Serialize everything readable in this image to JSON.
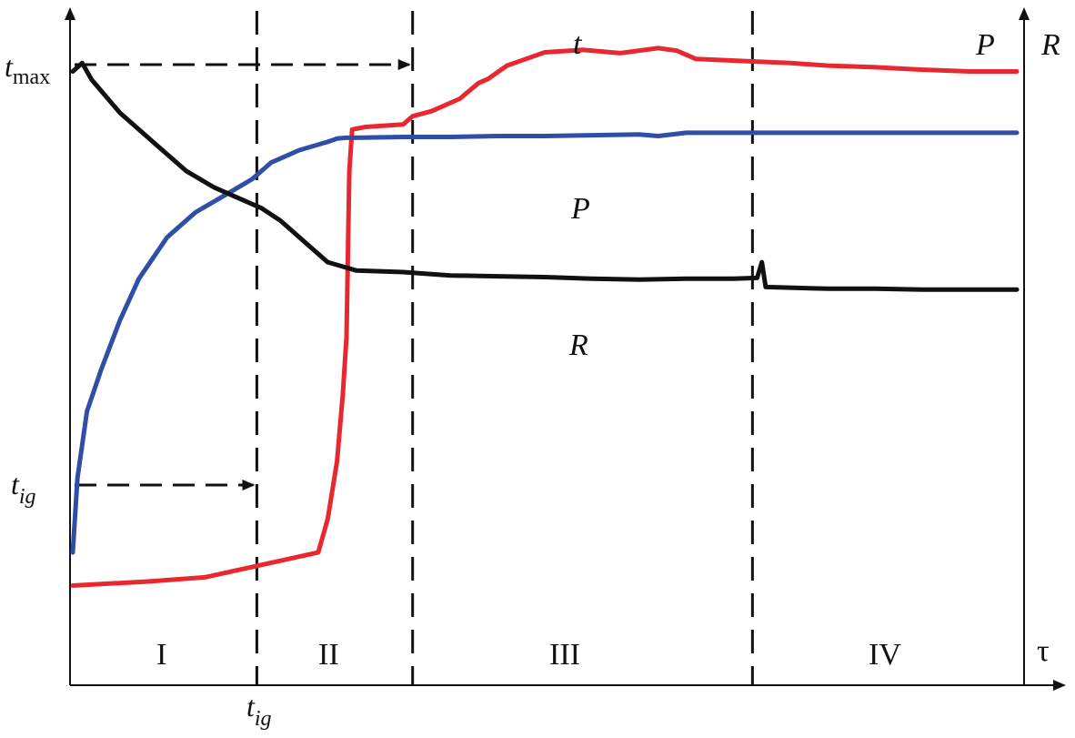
{
  "chart_data": {
    "type": "line",
    "title": "",
    "xlabel": "τ",
    "ylabels": {
      "P": "P",
      "R": "R"
    },
    "y_marks": {
      "tmax_base": "t",
      "tmax_sub": "max",
      "tig_base": "t",
      "tig_sub": "ig"
    },
    "x_marks": {
      "tig_base": "t",
      "tig_sub": "ig"
    },
    "stage_labels": [
      "I",
      "II",
      "III",
      "IV"
    ],
    "colors": {
      "t": "#e8282e",
      "P": "#2f4fa6",
      "R": "#111111"
    },
    "series": [
      {
        "name": "t",
        "points": [
          [
            0,
            34
          ],
          [
            8,
            34.5
          ],
          [
            14,
            35
          ],
          [
            18,
            36
          ],
          [
            22,
            37
          ],
          [
            26,
            38
          ],
          [
            27,
            42
          ],
          [
            28,
            49
          ],
          [
            28.6,
            57
          ],
          [
            29,
            64
          ],
          [
            29.3,
            84
          ],
          [
            29.6,
            89
          ],
          [
            31,
            89.3
          ],
          [
            35,
            89.6
          ],
          [
            36,
            90.6
          ],
          [
            38,
            91.2
          ],
          [
            41,
            92.7
          ],
          [
            43,
            94.6
          ],
          [
            44,
            95.1
          ],
          [
            46,
            96.7
          ],
          [
            48,
            97.5
          ],
          [
            50,
            98.3
          ],
          [
            54,
            98.6
          ],
          [
            58,
            98.2
          ],
          [
            62,
            98.8
          ],
          [
            64,
            98.5
          ],
          [
            66,
            97.5
          ],
          [
            72,
            97.2
          ],
          [
            76,
            97
          ],
          [
            80,
            96.7
          ],
          [
            85,
            96.5
          ],
          [
            90,
            96.2
          ],
          [
            95,
            96
          ],
          [
            100,
            96
          ]
        ]
      },
      {
        "name": "P",
        "points": [
          [
            0,
            38
          ],
          [
            0.5,
            47
          ],
          [
            1.5,
            55
          ],
          [
            3,
            60
          ],
          [
            5,
            66
          ],
          [
            7,
            71
          ],
          [
            10,
            76
          ],
          [
            13,
            79
          ],
          [
            16,
            81
          ],
          [
            19,
            83
          ],
          [
            21,
            85
          ],
          [
            24,
            86.5
          ],
          [
            27,
            87.5
          ],
          [
            28,
            87.9
          ],
          [
            29,
            88
          ],
          [
            30,
            88
          ],
          [
            35,
            88.1
          ],
          [
            40,
            88.1
          ],
          [
            45,
            88.2
          ],
          [
            50,
            88.2
          ],
          [
            55,
            88.3
          ],
          [
            60,
            88.4
          ],
          [
            62,
            88.2
          ],
          [
            65,
            88.6
          ],
          [
            70,
            88.6
          ],
          [
            75,
            88.6
          ],
          [
            80,
            88.6
          ],
          [
            90,
            88.6
          ],
          [
            100,
            88.6
          ]
        ]
      },
      {
        "name": "R",
        "points": [
          [
            0,
            96
          ],
          [
            1,
            97
          ],
          [
            2,
            95
          ],
          [
            5,
            91
          ],
          [
            9,
            87
          ],
          [
            12,
            84
          ],
          [
            15,
            82
          ],
          [
            18,
            80.5
          ],
          [
            20,
            79.5
          ],
          [
            22,
            78
          ],
          [
            24,
            76
          ],
          [
            27,
            73
          ],
          [
            30,
            72
          ],
          [
            35,
            71.8
          ],
          [
            40,
            71.4
          ],
          [
            45,
            71.3
          ],
          [
            50,
            71.2
          ],
          [
            55,
            71
          ],
          [
            60,
            70.9
          ],
          [
            65,
            71
          ],
          [
            70,
            71
          ],
          [
            72.5,
            71.1
          ],
          [
            73,
            73
          ],
          [
            73.4,
            70
          ],
          [
            80,
            69.8
          ],
          [
            85,
            69.8
          ],
          [
            90,
            69.7
          ],
          [
            95,
            69.7
          ],
          [
            100,
            69.7
          ]
        ]
      }
    ],
    "xlim": [
      0,
      100
    ],
    "ylim": [
      30,
      100
    ],
    "stage_bounds": [
      19.5,
      36,
      72
    ],
    "guides": {
      "t_max_y": 98.5,
      "t_ig_y": 64,
      "t_ig_x": 19.5,
      "t_max_x": 36
    },
    "grid": false,
    "legend": "none"
  }
}
